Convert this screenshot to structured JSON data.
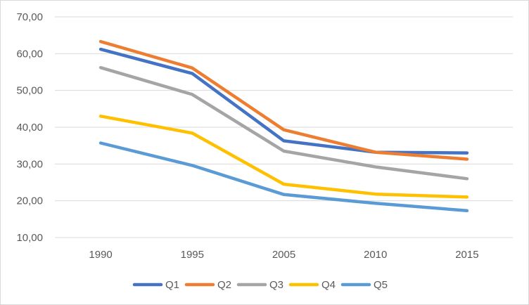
{
  "chart_data": {
    "type": "line",
    "categories": [
      "1990",
      "1995",
      "2005",
      "2010",
      "2015"
    ],
    "y_tick_labels": [
      "10,00",
      "20,00",
      "30,00",
      "40,00",
      "50,00",
      "60,00",
      "70,00"
    ],
    "ylim": [
      10,
      70
    ],
    "y_tick_step": 10,
    "grid": "horizontal",
    "legend_position": "bottom",
    "series": [
      {
        "name": "Q1",
        "color": "#4472c4",
        "values": [
          61.2,
          54.6,
          36.3,
          33.2,
          33.0
        ]
      },
      {
        "name": "Q2",
        "color": "#ed7d31",
        "values": [
          63.3,
          56.1,
          39.3,
          33.2,
          31.3
        ]
      },
      {
        "name": "Q3",
        "color": "#a5a5a5",
        "values": [
          56.2,
          48.9,
          33.5,
          29.2,
          26.0
        ]
      },
      {
        "name": "Q4",
        "color": "#ffc000",
        "values": [
          43.0,
          38.4,
          24.5,
          21.8,
          21.0
        ]
      },
      {
        "name": "Q5",
        "color": "#5b9bd5",
        "values": [
          35.7,
          29.6,
          21.7,
          19.3,
          17.3
        ]
      }
    ]
  }
}
